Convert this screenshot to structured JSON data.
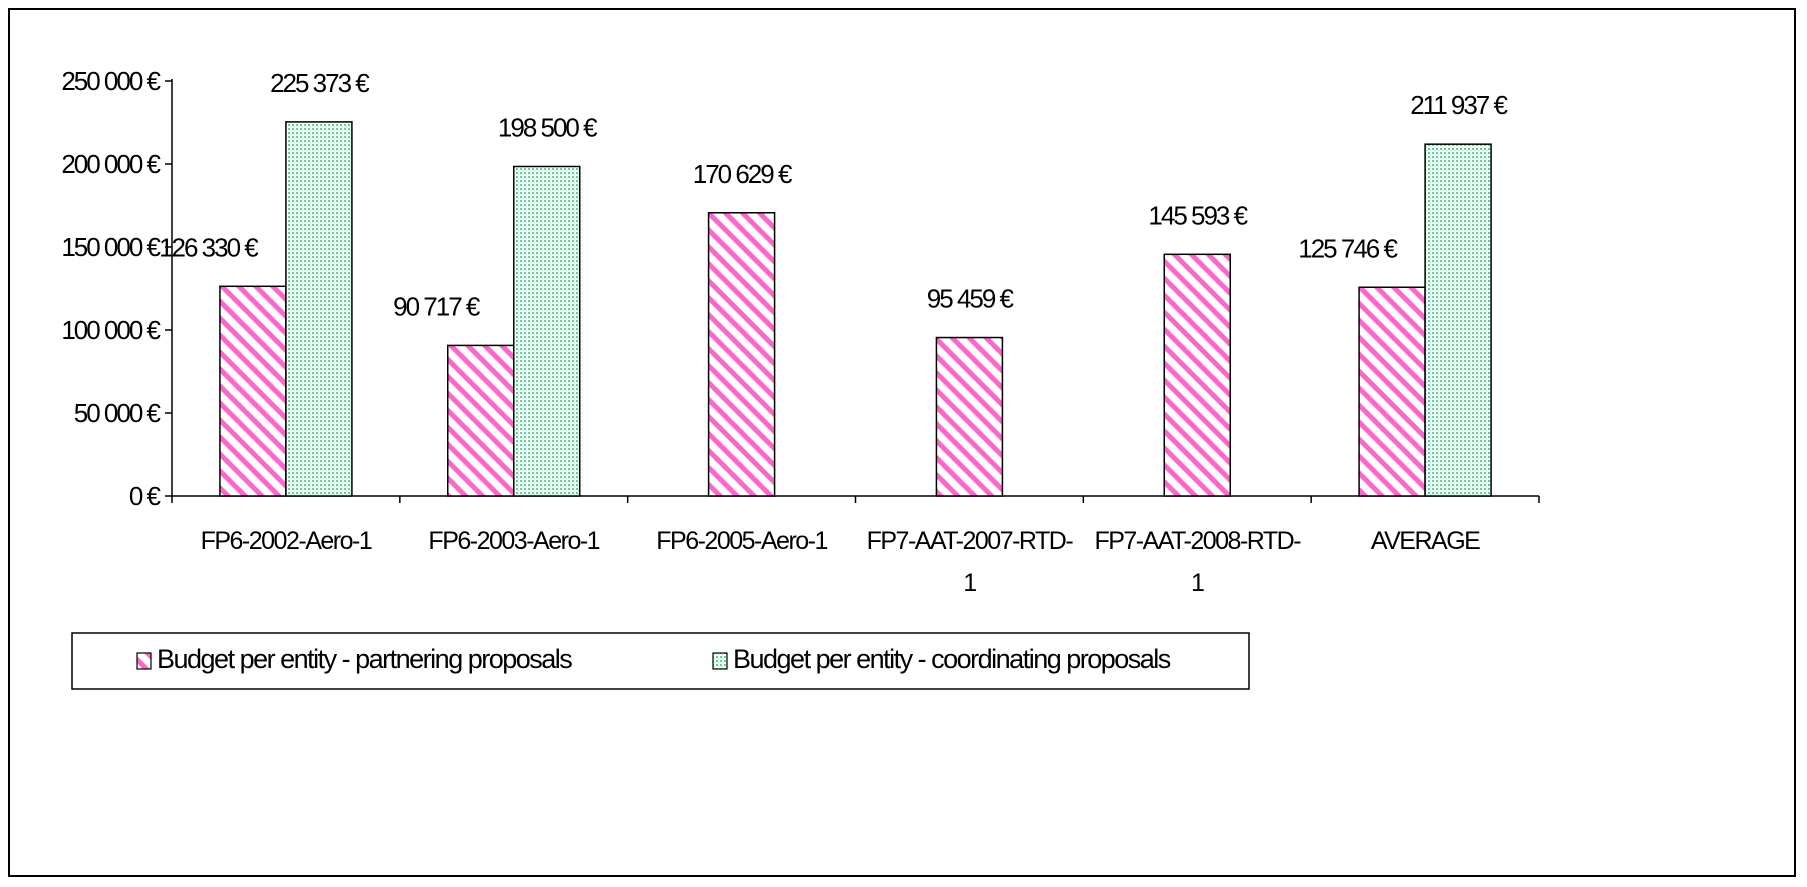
{
  "chart_data": {
    "type": "bar",
    "categories": [
      [
        "FP6-2002-Aero-1"
      ],
      [
        "FP6-2003-Aero-1"
      ],
      [
        "FP6-2005-Aero-1"
      ],
      [
        "FP7-AAT-2007-RTD-",
        "1"
      ],
      [
        "FP7-AAT-2008-RTD-",
        "1"
      ],
      [
        "AVERAGE"
      ]
    ],
    "series": [
      {
        "name": "Budget per entity - partnering proposals",
        "values": [
          126330,
          90717,
          170629,
          95459,
          145593,
          125746
        ],
        "labels": [
          "126 330 €",
          "90 717 €",
          "170 629 €",
          "95 459 €",
          "145 593 €",
          "125 746 €"
        ],
        "color": "#ff66cc",
        "pattern": "diagonal-stripes"
      },
      {
        "name": "Budget per entity - coordinating proposals",
        "values": [
          225373,
          198500,
          null,
          null,
          null,
          211937
        ],
        "labels": [
          "225 373 €",
          "198 500 €",
          null,
          null,
          null,
          "211 937 €"
        ],
        "color": "#66cc99",
        "pattern": "dots"
      }
    ],
    "ylim": [
      0,
      250000
    ],
    "yticks": [
      0,
      50000,
      100000,
      150000,
      200000,
      250000
    ],
    "ytick_labels": [
      "0 €",
      "50 000 €",
      "100 000 €",
      "150 000 €",
      "200 000 €",
      "250 000 €"
    ],
    "title": "",
    "xlabel": "",
    "ylabel": "",
    "grid": false,
    "legend_position": "bottom-left"
  }
}
